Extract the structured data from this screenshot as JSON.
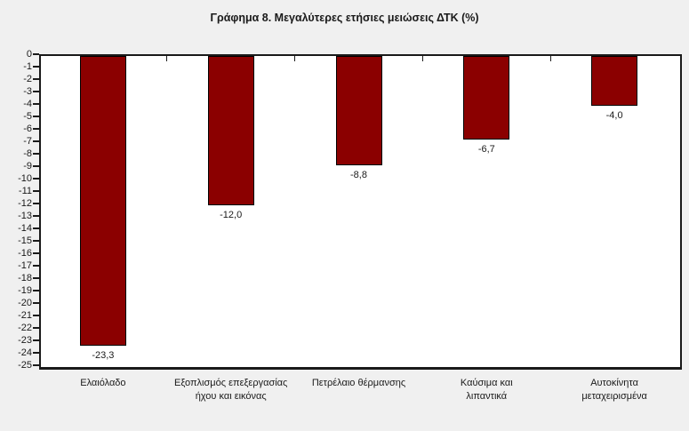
{
  "page": {
    "background_color": "#f0f0f0",
    "plot_background_color": "#ffffff",
    "axis_line_color": "#1a1a1a",
    "text_color": "#1a1a1a"
  },
  "chart_data": {
    "type": "bar",
    "title": "Γράφημα 8. Μεγαλύτερες ετήσιες μειώσεις ΔΤΚ (%)",
    "categories": [
      "Ελαιόλαδο",
      "Εξοπλισμός επεξεργασίας\nήχου και εικόνας",
      "Πετρέλαιο θέρμανσης",
      "Καύσιμα και\nλιπαντικά",
      "Αυτοκίνητα\nμεταχειρισμένα"
    ],
    "values": [
      -23.3,
      -12.0,
      -8.8,
      -6.7,
      -4.0
    ],
    "value_labels": [
      "-23,3",
      "-12,0",
      "-8,8",
      "-6,7",
      "-4,0"
    ],
    "xlabel": "",
    "ylabel": "",
    "ylim": [
      -25,
      0
    ],
    "ytick_step": 1,
    "grid": false,
    "legend": false,
    "bar_color": "#8B0000",
    "bar_border_color": "#000000"
  }
}
